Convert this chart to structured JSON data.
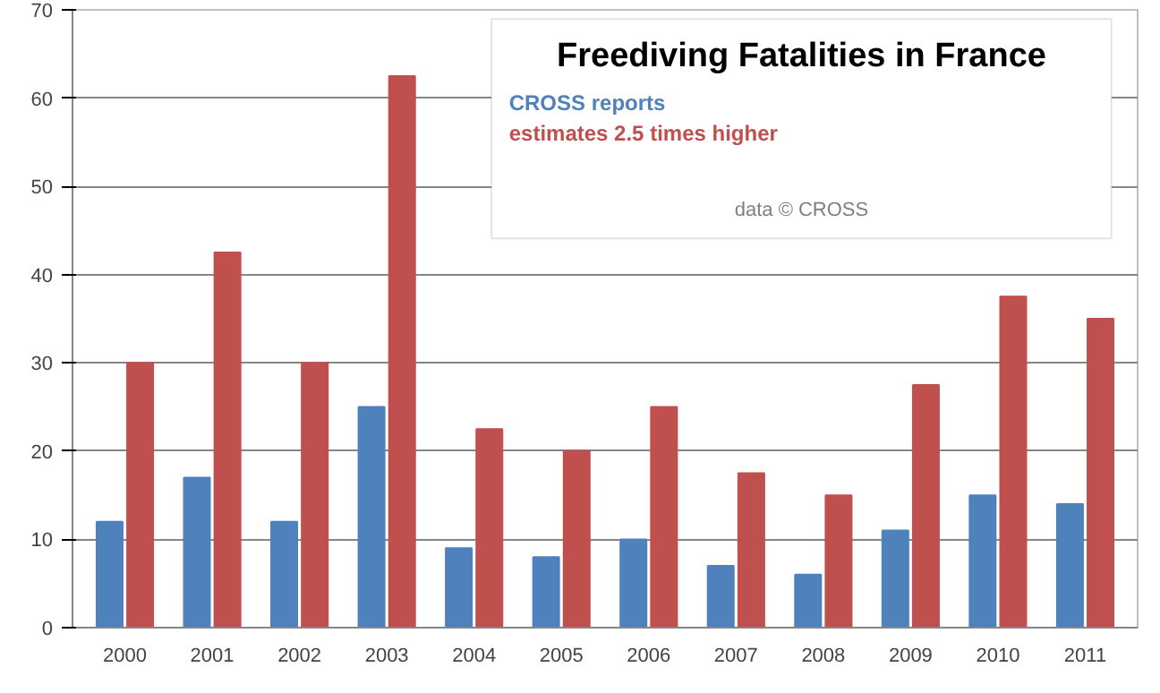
{
  "chart_data": {
    "type": "bar",
    "title": "Freediving Fatalities in France",
    "categories": [
      "2000",
      "2001",
      "2002",
      "2003",
      "2004",
      "2005",
      "2006",
      "2007",
      "2008",
      "2009",
      "2010",
      "2011"
    ],
    "series": [
      {
        "name": "CROSS reports",
        "color": "#4f81bd",
        "values": [
          12,
          17,
          12,
          25,
          9,
          8,
          10,
          7,
          6,
          11,
          15,
          14
        ]
      },
      {
        "name": "estimates 2.5 times higher",
        "color": "#c0504d",
        "values": [
          30,
          42.5,
          30,
          62.5,
          22.5,
          20,
          25,
          17.5,
          15,
          27.5,
          37.5,
          35
        ]
      }
    ],
    "ylim": [
      0,
      70
    ],
    "yticks": [
      0,
      10,
      20,
      30,
      40,
      50,
      60,
      70
    ],
    "grid": "y",
    "legend": "top right",
    "annotations": [
      "data © CROSS"
    ]
  }
}
